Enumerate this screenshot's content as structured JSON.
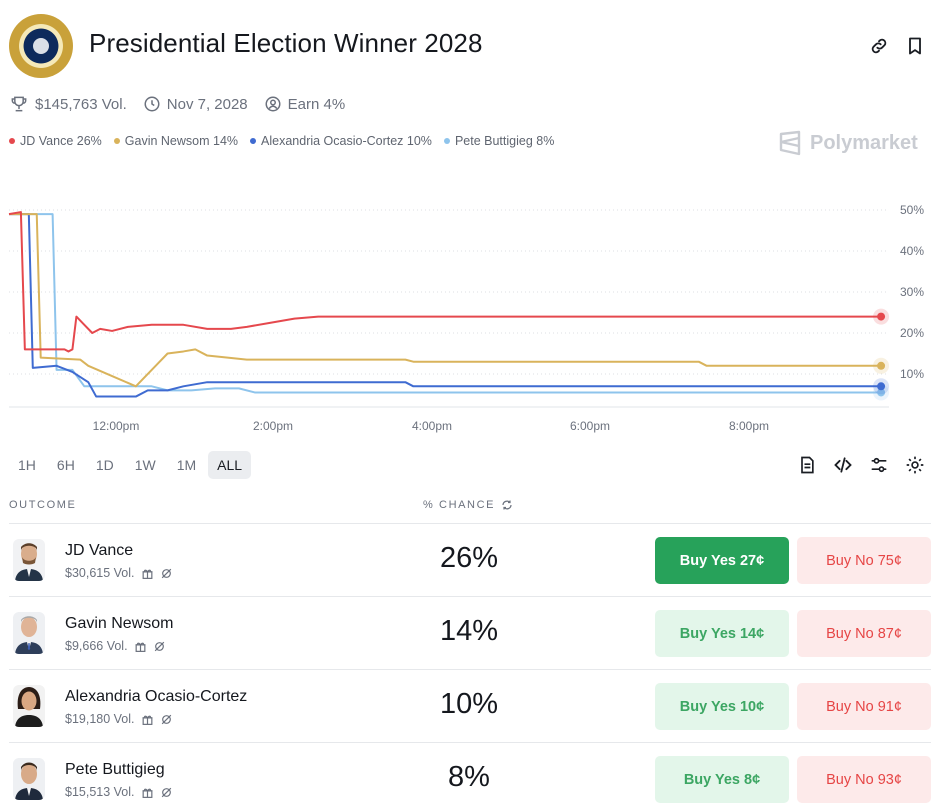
{
  "header": {
    "title": "Presidential Election Winner 2028",
    "seal_icon": "presidential-seal-icon"
  },
  "meta": {
    "volume": "$145,763 Vol.",
    "date": "Nov 7, 2028",
    "earn": "Earn 4%"
  },
  "legend": [
    {
      "label": "JD Vance 26%",
      "color": "#e5484d"
    },
    {
      "label": "Gavin Newsom 14%",
      "color": "#d9b35b"
    },
    {
      "label": "Alexandria Ocasio-Cortez 10%",
      "color": "#3f6bd1"
    },
    {
      "label": "Pete Buttigieg 8%",
      "color": "#8ec4ec"
    }
  ],
  "brand": "Polymarket",
  "chart_data": {
    "type": "line",
    "x_ticks": [
      "12:00pm",
      "2:00pm",
      "4:00pm",
      "6:00pm",
      "8:00pm"
    ],
    "y_ticks": [
      "10%",
      "20%",
      "30%",
      "40%",
      "50%"
    ],
    "ylim": [
      0,
      50
    ],
    "x_unit": "hours since chart start",
    "xlim": [
      0,
      11.1
    ],
    "series": [
      {
        "name": "JD Vance",
        "color": "#e5484d",
        "points": [
          [
            0,
            49
          ],
          [
            0.15,
            49.5
          ],
          [
            0.2,
            16
          ],
          [
            0.7,
            16
          ],
          [
            0.75,
            15.5
          ],
          [
            0.8,
            16
          ],
          [
            0.85,
            24
          ],
          [
            0.95,
            22
          ],
          [
            1.05,
            20
          ],
          [
            1.15,
            21
          ],
          [
            1.3,
            20.5
          ],
          [
            1.5,
            21.5
          ],
          [
            1.8,
            22
          ],
          [
            2.2,
            22
          ],
          [
            2.5,
            21
          ],
          [
            2.8,
            21
          ],
          [
            3.0,
            21.5
          ],
          [
            3.3,
            22.5
          ],
          [
            3.6,
            23.5
          ],
          [
            3.9,
            24
          ],
          [
            4.5,
            24
          ],
          [
            11.0,
            24
          ]
        ]
      },
      {
        "name": "Gavin Newsom",
        "color": "#d9b35b",
        "points": [
          [
            0,
            49
          ],
          [
            0.35,
            49
          ],
          [
            0.4,
            14
          ],
          [
            0.9,
            13.5
          ],
          [
            1.0,
            12
          ],
          [
            1.3,
            9.5
          ],
          [
            1.6,
            7
          ],
          [
            1.85,
            12
          ],
          [
            2.0,
            15
          ],
          [
            2.2,
            15.5
          ],
          [
            2.35,
            16
          ],
          [
            2.5,
            14.5
          ],
          [
            3.0,
            13.5
          ],
          [
            3.5,
            13.5
          ],
          [
            5.0,
            13.5
          ],
          [
            5.1,
            13
          ],
          [
            8.7,
            13
          ],
          [
            8.8,
            12
          ],
          [
            11.0,
            12
          ]
        ]
      },
      {
        "name": "Alexandria Ocasio-Cortez",
        "color": "#3f6bd1",
        "points": [
          [
            0,
            49
          ],
          [
            0.25,
            49
          ],
          [
            0.3,
            11.5
          ],
          [
            0.6,
            12
          ],
          [
            0.8,
            10.5
          ],
          [
            1.0,
            8
          ],
          [
            1.1,
            4.5
          ],
          [
            1.4,
            4.5
          ],
          [
            1.6,
            4.5
          ],
          [
            1.75,
            6
          ],
          [
            2.0,
            6
          ],
          [
            2.2,
            7
          ],
          [
            2.5,
            8
          ],
          [
            2.8,
            8
          ],
          [
            5.0,
            8
          ],
          [
            5.1,
            7
          ],
          [
            11.0,
            7
          ]
        ]
      },
      {
        "name": "Pete Buttigieg",
        "color": "#8ec4ec",
        "points": [
          [
            0,
            49
          ],
          [
            0.55,
            49
          ],
          [
            0.6,
            11
          ],
          [
            0.8,
            11
          ],
          [
            0.95,
            7
          ],
          [
            1.2,
            7
          ],
          [
            1.5,
            7
          ],
          [
            1.8,
            7
          ],
          [
            2.0,
            6
          ],
          [
            2.3,
            6
          ],
          [
            2.6,
            6.5
          ],
          [
            2.9,
            6.5
          ],
          [
            3.1,
            5.5
          ],
          [
            11.0,
            5.5
          ]
        ]
      }
    ],
    "grid": true
  },
  "ranges": [
    "1H",
    "6H",
    "1D",
    "1W",
    "1M",
    "ALL"
  ],
  "active_range": "ALL",
  "table": {
    "col_outcome": "OUTCOME",
    "col_chance": "% CHANCE",
    "rows": [
      {
        "name": "JD Vance",
        "volume": "$30,615 Vol.",
        "chance": "26%",
        "yes": "Buy Yes 27¢",
        "no": "Buy No 75¢"
      },
      {
        "name": "Gavin Newsom",
        "volume": "$9,666 Vol.",
        "chance": "14%",
        "yes": "Buy Yes 14¢",
        "no": "Buy No 87¢"
      },
      {
        "name": "Alexandria Ocasio-Cortez",
        "volume": "$19,180 Vol.",
        "chance": "10%",
        "yes": "Buy Yes 10¢",
        "no": "Buy No 91¢"
      },
      {
        "name": "Pete Buttigieg",
        "volume": "$15,513 Vol.",
        "chance": "8%",
        "yes": "Buy Yes 8¢",
        "no": "Buy No 93¢"
      }
    ]
  }
}
